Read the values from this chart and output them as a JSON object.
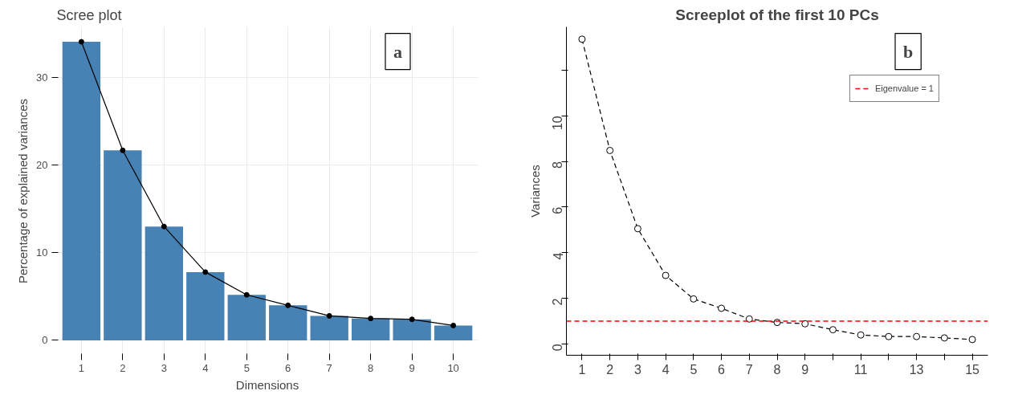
{
  "chart_data": [
    {
      "type": "bar",
      "title": "Scree plot",
      "xlabel": "Dimensions",
      "ylabel": "Percentage of explained variances",
      "categories": [
        "1",
        "2",
        "3",
        "4",
        "5",
        "6",
        "7",
        "8",
        "9",
        "10"
      ],
      "series": [
        {
          "type": "bar",
          "color": "#4682b4",
          "values": [
            34.1,
            21.7,
            13.0,
            7.8,
            5.2,
            4.0,
            2.8,
            2.5,
            2.4,
            1.7
          ]
        },
        {
          "type": "line",
          "color": "#000000",
          "marker": "circle",
          "values": [
            34.1,
            21.7,
            13.0,
            7.8,
            5.2,
            4.0,
            2.8,
            2.5,
            2.4,
            1.7
          ]
        }
      ],
      "ylim": [
        -1.7,
        35.8
      ],
      "yticks": [
        0,
        10,
        20,
        30
      ],
      "grid": true,
      "legend": false,
      "annotations": [
        "a"
      ]
    },
    {
      "type": "line",
      "title": "Screeplot of the first 10 PCs",
      "ylabel": "Variances",
      "x": [
        1,
        2,
        3,
        4,
        5,
        6,
        7,
        8,
        9,
        10,
        11,
        12,
        13,
        14,
        15
      ],
      "series": [
        {
          "color": "#000000",
          "values": [
            13.36,
            8.48,
            5.05,
            3.0,
            1.97,
            1.56,
            1.09,
            0.94,
            0.88,
            0.62,
            0.39,
            0.32,
            0.32,
            0.26,
            0.19
          ]
        }
      ],
      "marker": "circle",
      "line_style": "dashed",
      "xlim": [
        0.44,
        15.56
      ],
      "ylim": [
        -0.5,
        13.9
      ],
      "xticks": [
        1,
        2,
        3,
        4,
        5,
        6,
        7,
        8,
        9,
        {
          "value": 10,
          "label": null
        },
        11,
        {
          "value": 12,
          "label": null
        },
        13,
        {
          "value": 14,
          "label": null
        },
        15
      ],
      "yticks": [
        0,
        2,
        4,
        6,
        8,
        10,
        {
          "value": 12,
          "label": null
        }
      ],
      "ref_lines": [
        {
          "axis": "y",
          "value": 1,
          "label": "Eigenvalue = 1",
          "color": "#ff0000",
          "line_style": "dashed"
        }
      ],
      "grid": false,
      "legend": "top right",
      "annotations": [
        "b"
      ]
    }
  ]
}
